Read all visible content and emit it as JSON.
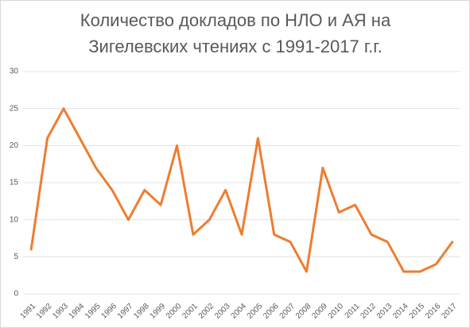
{
  "chart_data": {
    "type": "line",
    "title": "Количество докладов по НЛО и АЯ на Зигелевских чтениях с 1991-2017 г.г.",
    "categories": [
      "1991",
      "1992",
      "1993",
      "1994",
      "1995",
      "1996",
      "1997",
      "1998",
      "1999",
      "2000",
      "2001",
      "2002",
      "2003",
      "2004",
      "2005",
      "2006",
      "2007",
      "2008",
      "2009",
      "2010",
      "2011",
      "2012",
      "2013",
      "2014",
      "2015",
      "2016",
      "2017"
    ],
    "values": [
      6,
      21,
      25,
      21,
      17,
      14,
      10,
      14,
      12,
      20,
      8,
      10,
      14,
      8,
      21,
      8,
      7,
      3,
      17,
      11,
      12,
      8,
      7,
      3,
      3,
      4,
      7
    ],
    "color": "#ed7d31",
    "ylim": [
      0,
      30
    ],
    "yticks": [
      0,
      5,
      10,
      15,
      20,
      25,
      30
    ],
    "grid": true
  }
}
